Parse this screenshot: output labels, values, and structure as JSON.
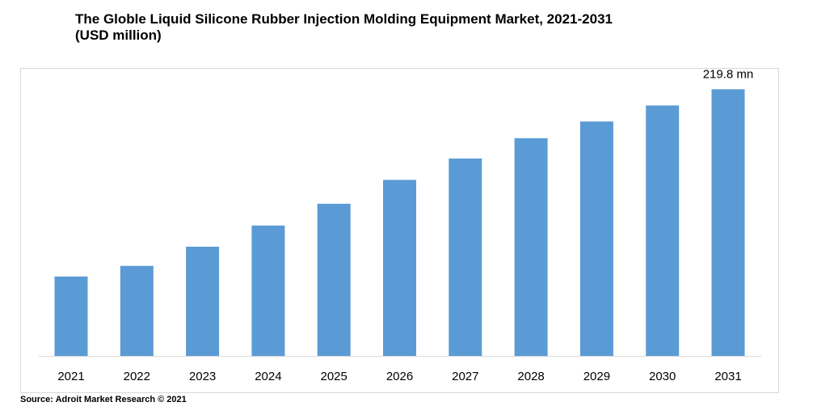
{
  "title": {
    "line1": "The Globle Liquid Silicone Rubber Injection Molding Equipment Market, 2021-2031",
    "line2": "(USD million)"
  },
  "source": "Source: Adroit Market Research © 2021",
  "colors": {
    "bar": "#5b9bd5",
    "axis": "#d9d9d9",
    "text": "#000000"
  },
  "chart_data": {
    "type": "bar",
    "title": "The Globle Liquid Silicone Rubber Injection Molding Equipment Market, 2021-2031 (USD million)",
    "xlabel": "",
    "ylabel": "",
    "categories": [
      "2021",
      "2022",
      "2023",
      "2024",
      "2025",
      "2026",
      "2027",
      "2028",
      "2029",
      "2030",
      "2031"
    ],
    "values": [
      65.5,
      74.2,
      90.0,
      107.5,
      125.4,
      145.1,
      162.7,
      179.5,
      193.2,
      206.4,
      219.8
    ],
    "ylim": [
      0,
      240
    ],
    "grid": false,
    "annotations": [
      {
        "category": "2031",
        "text": "219.8 mn"
      }
    ]
  }
}
